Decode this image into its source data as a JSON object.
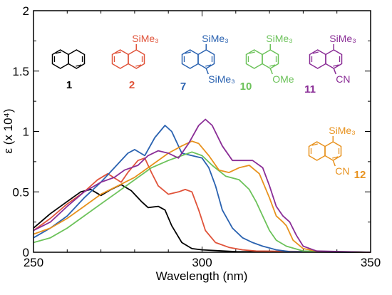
{
  "chart_data": {
    "type": "line",
    "xlabel": "Wavelength (nm)",
    "ylabel": "ε (x 10⁴)",
    "xlim": [
      250,
      350
    ],
    "ylim": [
      0,
      2
    ],
    "xticks": [
      "250",
      "300",
      "350"
    ],
    "yticks": [
      "0",
      "0.5",
      "1",
      "1.5",
      "2"
    ],
    "minor_x_step": 10,
    "minor_y_step": 0.25,
    "series": [
      {
        "color": "#000000",
        "points": [
          [
            250,
            0.2
          ],
          [
            255,
            0.32
          ],
          [
            260,
            0.42
          ],
          [
            264,
            0.5
          ],
          [
            267,
            0.52
          ],
          [
            270,
            0.47
          ],
          [
            273,
            0.52
          ],
          [
            276,
            0.56
          ],
          [
            279,
            0.51
          ],
          [
            282,
            0.42
          ],
          [
            284,
            0.37
          ],
          [
            287,
            0.38
          ],
          [
            289,
            0.35
          ],
          [
            291,
            0.22
          ],
          [
            294,
            0.08
          ],
          [
            297,
            0.03
          ],
          [
            300,
            0.02
          ],
          [
            310,
            0.005
          ],
          [
            350,
            0.0
          ]
        ]
      },
      {
        "color": "#e0533a",
        "points": [
          [
            250,
            0.18
          ],
          [
            255,
            0.28
          ],
          [
            260,
            0.4
          ],
          [
            265,
            0.5
          ],
          [
            269,
            0.6
          ],
          [
            272,
            0.65
          ],
          [
            276,
            0.58
          ],
          [
            278,
            0.66
          ],
          [
            281,
            0.76
          ],
          [
            283,
            0.78
          ],
          [
            285,
            0.66
          ],
          [
            287,
            0.55
          ],
          [
            290,
            0.48
          ],
          [
            293,
            0.5
          ],
          [
            295,
            0.52
          ],
          [
            297,
            0.5
          ],
          [
            299,
            0.35
          ],
          [
            301,
            0.18
          ],
          [
            304,
            0.08
          ],
          [
            308,
            0.04
          ],
          [
            312,
            0.02
          ],
          [
            316,
            0.01
          ],
          [
            350,
            0.0
          ]
        ]
      },
      {
        "color": "#2a62b0",
        "points": [
          [
            250,
            0.12
          ],
          [
            255,
            0.2
          ],
          [
            260,
            0.3
          ],
          [
            265,
            0.45
          ],
          [
            270,
            0.58
          ],
          [
            274,
            0.7
          ],
          [
            278,
            0.82
          ],
          [
            280,
            0.85
          ],
          [
            283,
            0.8
          ],
          [
            286,
            0.95
          ],
          [
            289,
            1.05
          ],
          [
            291,
            1.0
          ],
          [
            294,
            0.82
          ],
          [
            297,
            0.8
          ],
          [
            300,
            0.78
          ],
          [
            302,
            0.7
          ],
          [
            304,
            0.55
          ],
          [
            306,
            0.35
          ],
          [
            309,
            0.2
          ],
          [
            312,
            0.12
          ],
          [
            315,
            0.08
          ],
          [
            318,
            0.05
          ],
          [
            322,
            0.02
          ],
          [
            326,
            0.005
          ],
          [
            350,
            0.0
          ]
        ]
      },
      {
        "color": "#6cc25a",
        "points": [
          [
            250,
            0.08
          ],
          [
            255,
            0.12
          ],
          [
            260,
            0.2
          ],
          [
            265,
            0.3
          ],
          [
            270,
            0.4
          ],
          [
            275,
            0.5
          ],
          [
            280,
            0.6
          ],
          [
            285,
            0.7
          ],
          [
            290,
            0.76
          ],
          [
            294,
            0.8
          ],
          [
            297,
            0.83
          ],
          [
            300,
            0.8
          ],
          [
            303,
            0.72
          ],
          [
            307,
            0.63
          ],
          [
            311,
            0.6
          ],
          [
            314,
            0.52
          ],
          [
            316,
            0.42
          ],
          [
            318,
            0.3
          ],
          [
            320,
            0.18
          ],
          [
            322,
            0.1
          ],
          [
            325,
            0.05
          ],
          [
            330,
            0.01
          ],
          [
            350,
            0.0
          ]
        ]
      },
      {
        "color": "#e8921e",
        "points": [
          [
            250,
            0.15
          ],
          [
            255,
            0.2
          ],
          [
            260,
            0.28
          ],
          [
            265,
            0.38
          ],
          [
            270,
            0.48
          ],
          [
            275,
            0.55
          ],
          [
            280,
            0.62
          ],
          [
            285,
            0.72
          ],
          [
            290,
            0.82
          ],
          [
            294,
            0.88
          ],
          [
            297,
            0.92
          ],
          [
            299,
            0.9
          ],
          [
            302,
            0.8
          ],
          [
            305,
            0.68
          ],
          [
            308,
            0.66
          ],
          [
            311,
            0.7
          ],
          [
            314,
            0.72
          ],
          [
            317,
            0.65
          ],
          [
            320,
            0.45
          ],
          [
            322,
            0.3
          ],
          [
            324,
            0.25
          ],
          [
            325,
            0.22
          ],
          [
            327,
            0.1
          ],
          [
            330,
            0.03
          ],
          [
            335,
            0.005
          ],
          [
            350,
            0.0
          ]
        ]
      },
      {
        "color": "#8a2d96",
        "points": [
          [
            250,
            0.18
          ],
          [
            255,
            0.25
          ],
          [
            260,
            0.38
          ],
          [
            265,
            0.5
          ],
          [
            270,
            0.58
          ],
          [
            274,
            0.62
          ],
          [
            277,
            0.68
          ],
          [
            281,
            0.72
          ],
          [
            284,
            0.8
          ],
          [
            287,
            0.84
          ],
          [
            290,
            0.82
          ],
          [
            293,
            0.78
          ],
          [
            296,
            0.9
          ],
          [
            299,
            1.05
          ],
          [
            301,
            1.1
          ],
          [
            303,
            1.05
          ],
          [
            306,
            0.88
          ],
          [
            309,
            0.76
          ],
          [
            312,
            0.76
          ],
          [
            315,
            0.76
          ],
          [
            318,
            0.7
          ],
          [
            320,
            0.55
          ],
          [
            322,
            0.38
          ],
          [
            324,
            0.3
          ],
          [
            326,
            0.25
          ],
          [
            328,
            0.14
          ],
          [
            330,
            0.05
          ],
          [
            334,
            0.01
          ],
          [
            350,
            0.0
          ]
        ]
      }
    ],
    "compound_labels": [
      {
        "number": "1",
        "color": "#000000",
        "substituents": []
      },
      {
        "number": "2",
        "color": "#e0533a",
        "substituents": [
          "SiMe₃"
        ]
      },
      {
        "number": "7",
        "color": "#2a62b0",
        "substituents": [
          "SiMe₃",
          "SiMe₃"
        ]
      },
      {
        "number": "10",
        "color": "#6cc25a",
        "substituents": [
          "SiMe₃",
          "OMe"
        ]
      },
      {
        "number": "11",
        "color": "#8a2d96",
        "substituents": [
          "SiMe₃",
          "CN"
        ]
      },
      {
        "number": "12",
        "color": "#e8921e",
        "substituents": [
          "SiMe₃",
          "CN"
        ]
      }
    ]
  }
}
